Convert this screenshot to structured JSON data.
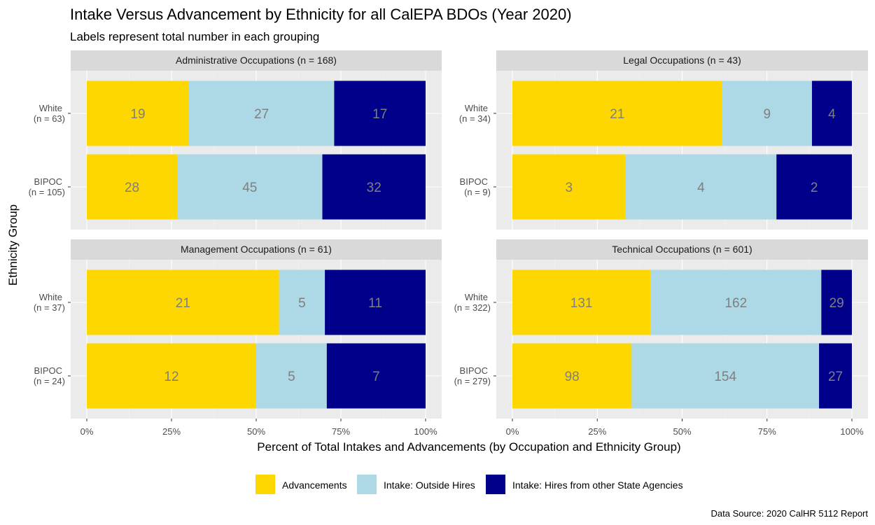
{
  "chart_data": {
    "type": "bar",
    "orientation": "horizontal",
    "stacked": "percent",
    "title": "Intake Versus Advancement by Ethnicity for all CalEPA BDOs (Year 2020)",
    "subtitle": "Labels represent total number in each grouping",
    "xlabel": "Percent of Total Intakes and Advancements (by Occupation and Ethnicity Group)",
    "ylabel": "Ethnicity Group",
    "caption": "Data Source: 2020 CalHR 5112 Report",
    "x_ticks": [
      "0%",
      "25%",
      "50%",
      "75%",
      "100%"
    ],
    "xlim": [
      0,
      100
    ],
    "legend_position": "bottom",
    "series": [
      {
        "name": "Advancements",
        "color": "#FFD700"
      },
      {
        "name": "Intake: Outside Hires",
        "color": "#ADD8E6"
      },
      {
        "name": "Intake: Hires from other State Agencies",
        "color": "#00008B"
      }
    ],
    "panels": [
      {
        "title": "Administrative Occupations (n = 168)",
        "groups": [
          {
            "label": "White",
            "n_label": "(n = 63)",
            "values": [
              19,
              27,
              17
            ]
          },
          {
            "label": "BIPOC",
            "n_label": "(n = 105)",
            "values": [
              28,
              45,
              32
            ]
          }
        ]
      },
      {
        "title": "Legal Occupations (n = 43)",
        "groups": [
          {
            "label": "White",
            "n_label": "(n = 34)",
            "values": [
              21,
              9,
              4
            ]
          },
          {
            "label": "BIPOC",
            "n_label": "(n = 9)",
            "values": [
              3,
              4,
              2
            ]
          }
        ]
      },
      {
        "title": "Management Occupations (n = 61)",
        "groups": [
          {
            "label": "White",
            "n_label": "(n = 37)",
            "values": [
              21,
              5,
              11
            ]
          },
          {
            "label": "BIPOC",
            "n_label": "(n = 24)",
            "values": [
              12,
              5,
              7
            ]
          }
        ]
      },
      {
        "title": "Technical Occupations (n = 601)",
        "groups": [
          {
            "label": "White",
            "n_label": "(n = 322)",
            "values": [
              131,
              162,
              29
            ]
          },
          {
            "label": "BIPOC",
            "n_label": "(n = 279)",
            "values": [
              98,
              154,
              27
            ]
          }
        ]
      }
    ]
  }
}
